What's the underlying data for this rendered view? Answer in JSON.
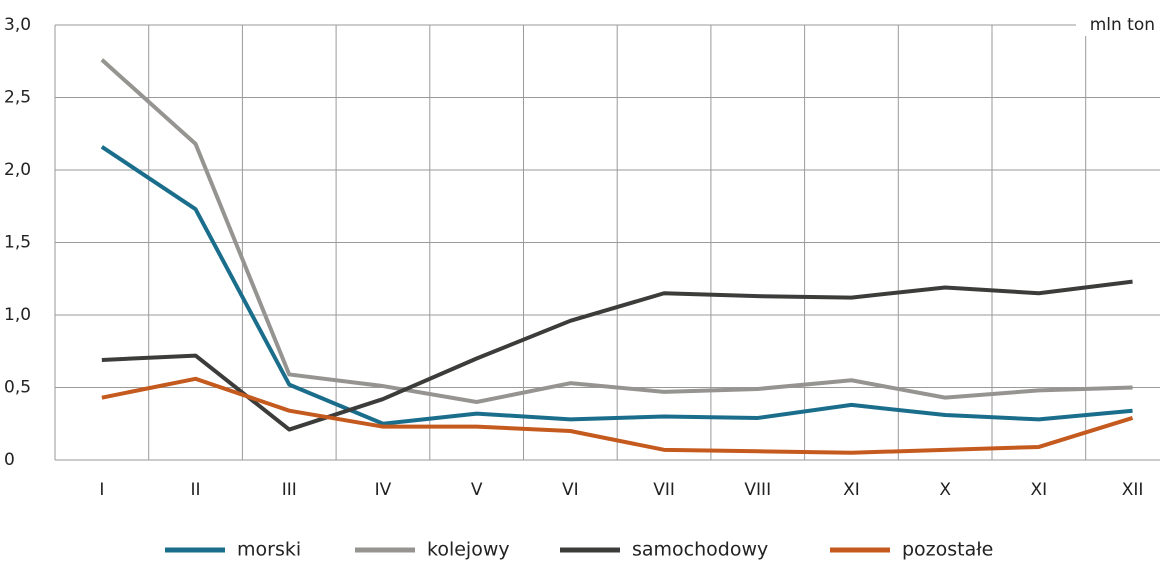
{
  "chart_data": {
    "type": "line",
    "y_label": "mln ton",
    "categories": [
      "I",
      "II",
      "III",
      "IV",
      "V",
      "VI",
      "VII",
      "VIII",
      "XI",
      "X",
      "XI",
      "XII"
    ],
    "series": [
      {
        "name": "morski",
        "color": "#1a6e8c",
        "values": [
          2.16,
          1.73,
          0.52,
          0.25,
          0.32,
          0.28,
          0.3,
          0.29,
          0.38,
          0.31,
          0.28,
          0.34
        ]
      },
      {
        "name": "kolejowy",
        "color": "#959491",
        "values": [
          2.76,
          2.18,
          0.59,
          0.51,
          0.4,
          0.53,
          0.47,
          0.49,
          0.55,
          0.43,
          0.48,
          0.5
        ]
      },
      {
        "name": "samochodowy",
        "color": "#3c3c3b",
        "values": [
          0.69,
          0.72,
          0.21,
          0.42,
          0.7,
          0.96,
          1.15,
          1.13,
          1.12,
          1.19,
          1.15,
          1.23
        ]
      },
      {
        "name": "pozostałe",
        "color": "#c55a1e",
        "values": [
          0.43,
          0.56,
          0.34,
          0.23,
          0.23,
          0.2,
          0.07,
          0.06,
          0.05,
          0.07,
          0.09,
          0.29
        ]
      }
    ],
    "ylim": [
      0,
      3
    ],
    "yticks": [
      0,
      {
        "value": 0.5,
        "label": "0,5"
      },
      {
        "value": 1,
        "label": "1,0"
      },
      {
        "value": 1.5,
        "label": "1,5"
      },
      {
        "value": 2,
        "label": "2,0"
      },
      {
        "value": 2.5,
        "label": "2,5"
      },
      {
        "value": 3,
        "label": "3,0"
      }
    ],
    "grid": true
  }
}
